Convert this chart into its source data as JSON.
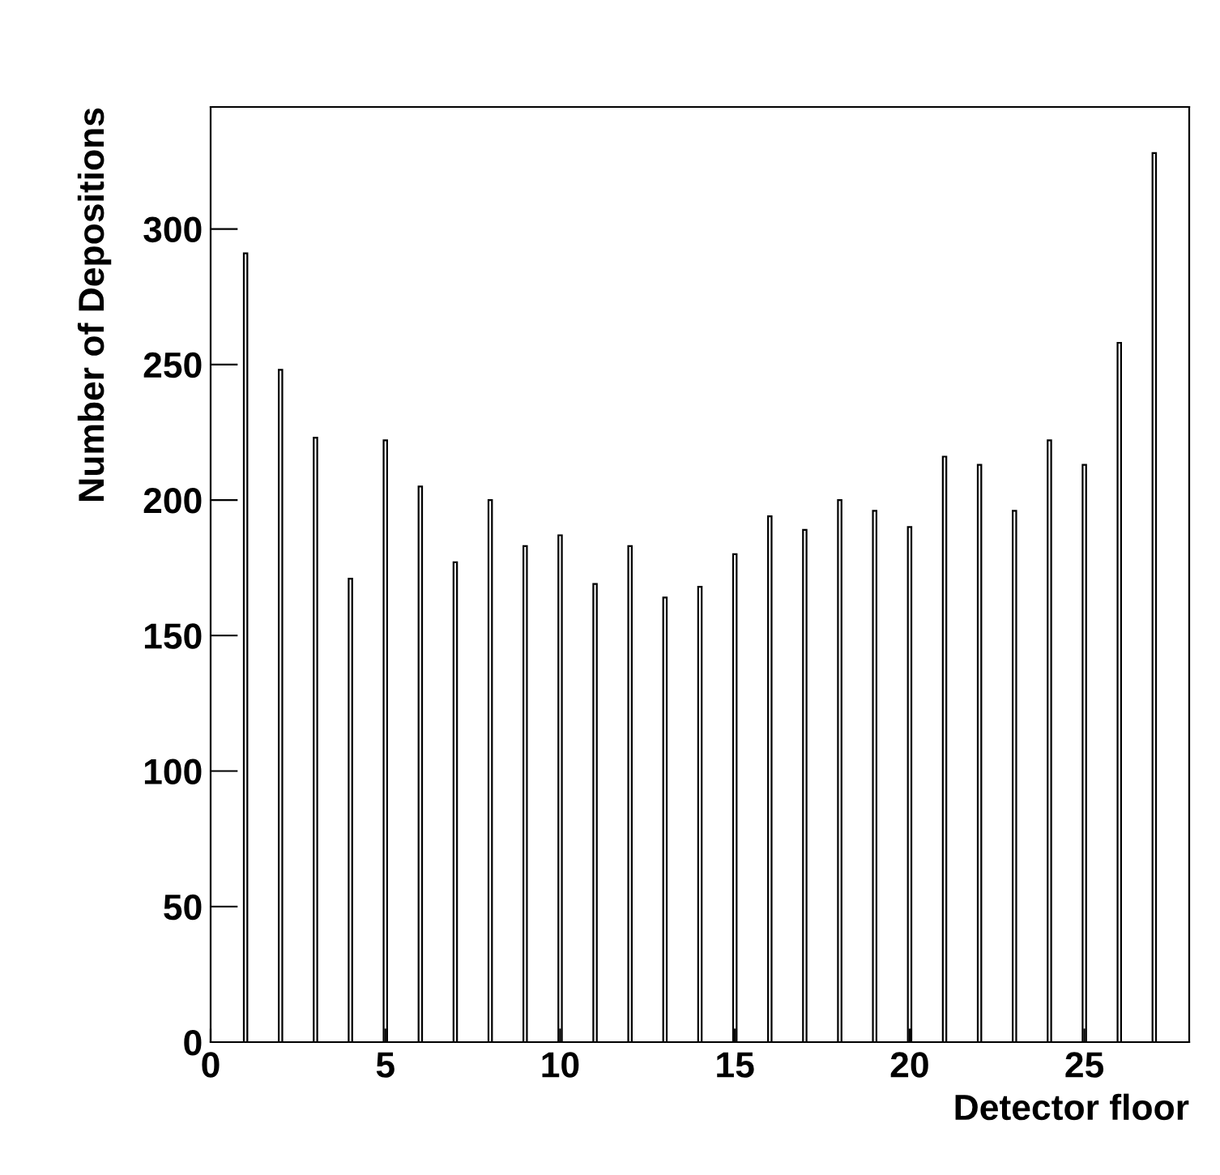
{
  "chart_data": {
    "type": "bar",
    "xlabel": "Detector floor",
    "ylabel": "Number of Depositions",
    "x": [
      1,
      2,
      3,
      4,
      5,
      6,
      7,
      8,
      9,
      10,
      11,
      12,
      13,
      14,
      15,
      16,
      17,
      18,
      19,
      20,
      21,
      22,
      23,
      24,
      25,
      26,
      27
    ],
    "values": [
      291,
      248,
      223,
      171,
      222,
      205,
      177,
      200,
      183,
      187,
      169,
      183,
      164,
      168,
      180,
      194,
      189,
      200,
      196,
      190,
      216,
      213,
      196,
      222,
      213,
      258,
      328
    ],
    "color": "#ffffff",
    "xlim": [
      0,
      28
    ],
    "ylim": [
      0,
      345
    ],
    "xticks": [
      0,
      5,
      10,
      15,
      20,
      25
    ],
    "yticks": [
      0,
      50,
      100,
      150,
      200,
      250,
      300
    ],
    "grid": false,
    "legend": false
  }
}
